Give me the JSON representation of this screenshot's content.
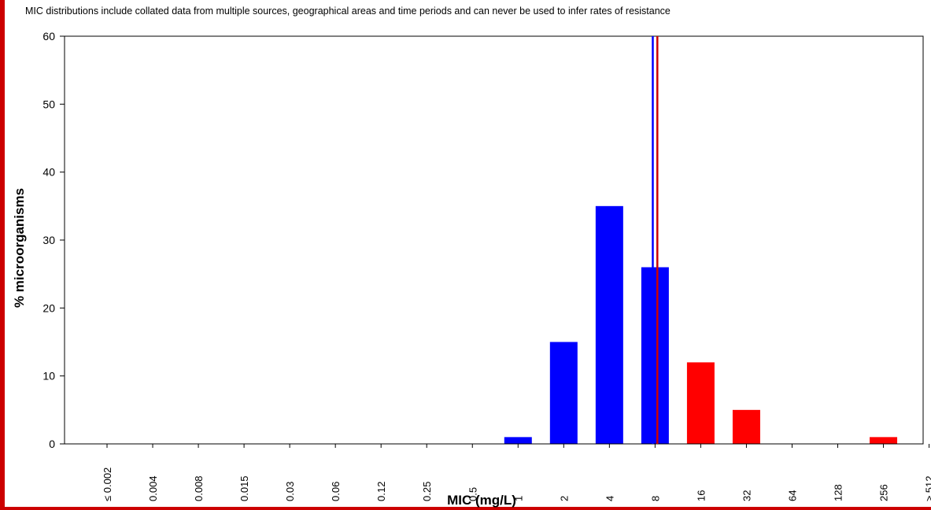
{
  "disclaimer": "MIC distributions include collated data from multiple sources, geographical areas and time periods and can never be used to infer rates of resistance",
  "colors": {
    "frame": "#cc0000",
    "susceptible": "#0000ff",
    "resistant": "#ff0000",
    "breakpoint_s": "#0000ff",
    "breakpoint_r": "#cc0000"
  },
  "chart_data": {
    "type": "bar",
    "xlabel": "MIC (mg/L)",
    "ylabel": "% microorganisms",
    "ylim": [
      0,
      60
    ],
    "yticks": [
      0,
      10,
      20,
      30,
      40,
      50,
      60
    ],
    "grid": false,
    "categories": [
      "≤ 0.002",
      "0.004",
      "0.008",
      "0.015",
      "0.03",
      "0.06",
      "0.12",
      "0.25",
      "0.5",
      "1",
      "2",
      "4",
      "8",
      "16",
      "32",
      "64",
      "128",
      "256",
      "≥ 512"
    ],
    "values": [
      0,
      0,
      0,
      0,
      0,
      0,
      0,
      0,
      0,
      1,
      15,
      35,
      26,
      12,
      5,
      0,
      0,
      1,
      0
    ],
    "bar_colors": [
      "susceptible",
      "susceptible",
      "susceptible",
      "susceptible",
      "susceptible",
      "susceptible",
      "susceptible",
      "susceptible",
      "susceptible",
      "susceptible",
      "susceptible",
      "susceptible",
      "susceptible",
      "resistant",
      "resistant",
      "resistant",
      "resistant",
      "resistant",
      "resistant"
    ],
    "breakpoints": [
      {
        "category_position": 11.95,
        "color": "breakpoint_s"
      },
      {
        "category_position": 12.05,
        "color": "breakpoint_r"
      }
    ]
  }
}
